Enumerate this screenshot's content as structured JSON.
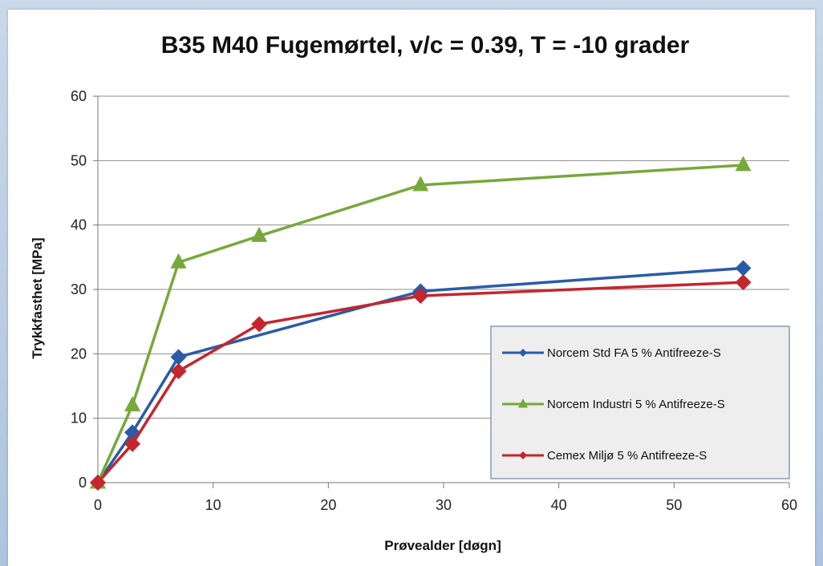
{
  "chart_data": {
    "type": "line",
    "title": "B35 M40 Fugemørtel, v/c = 0.39, T = -10 grader",
    "xlabel": "Prøvealder [døgn]",
    "ylabel": "Trykkfasthet  [MPa]",
    "xlim": [
      0,
      60
    ],
    "ylim": [
      0,
      60
    ],
    "xticks": [
      0,
      10,
      20,
      30,
      40,
      50,
      60
    ],
    "yticks": [
      0,
      10,
      20,
      30,
      40,
      50,
      60
    ],
    "grid": "horizontal",
    "legend_position": "lower-right",
    "series": [
      {
        "name": "Norcem Std FA 5 % Antifreeze-S",
        "color": "#2a5ba8",
        "marker": "diamond",
        "x": [
          0,
          3,
          7,
          28,
          56
        ],
        "y": [
          0,
          7.8,
          19.5,
          29.7,
          33.3
        ]
      },
      {
        "name": "Norcem Industri 5 % Antifreeze-S",
        "color": "#77a83c",
        "marker": "triangle",
        "x": [
          0,
          3,
          7,
          14,
          28,
          56
        ],
        "y": [
          0,
          12,
          34.2,
          38.3,
          46.2,
          49.3
        ]
      },
      {
        "name": "Cemex Miljø 5 % Antifreeze-S",
        "color": "#c4262e",
        "marker": "diamond",
        "x": [
          0,
          3,
          7,
          14,
          28,
          56
        ],
        "y": [
          0,
          6,
          17.3,
          24.6,
          29,
          31.1
        ]
      }
    ]
  }
}
